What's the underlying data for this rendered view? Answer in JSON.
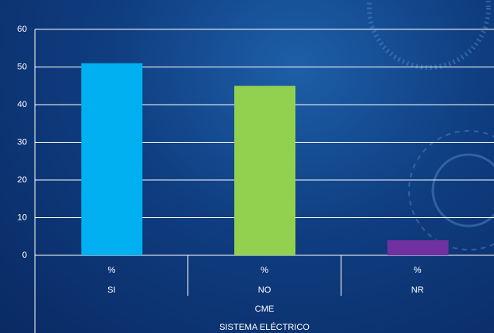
{
  "chart_data": {
    "type": "bar",
    "categories": [
      "SI",
      "NO",
      "NR"
    ],
    "subcategories": [
      "%",
      "%",
      "%"
    ],
    "group": "CME",
    "x_label": "SISTEMA ELÉCTRICO",
    "values": [
      51,
      45,
      4
    ],
    "colors": [
      "#00b0f0",
      "#92d050",
      "#7030a0"
    ],
    "ylim": [
      0,
      60
    ],
    "yticks": [
      0,
      10,
      20,
      30,
      40,
      50,
      60
    ],
    "grid": true
  }
}
